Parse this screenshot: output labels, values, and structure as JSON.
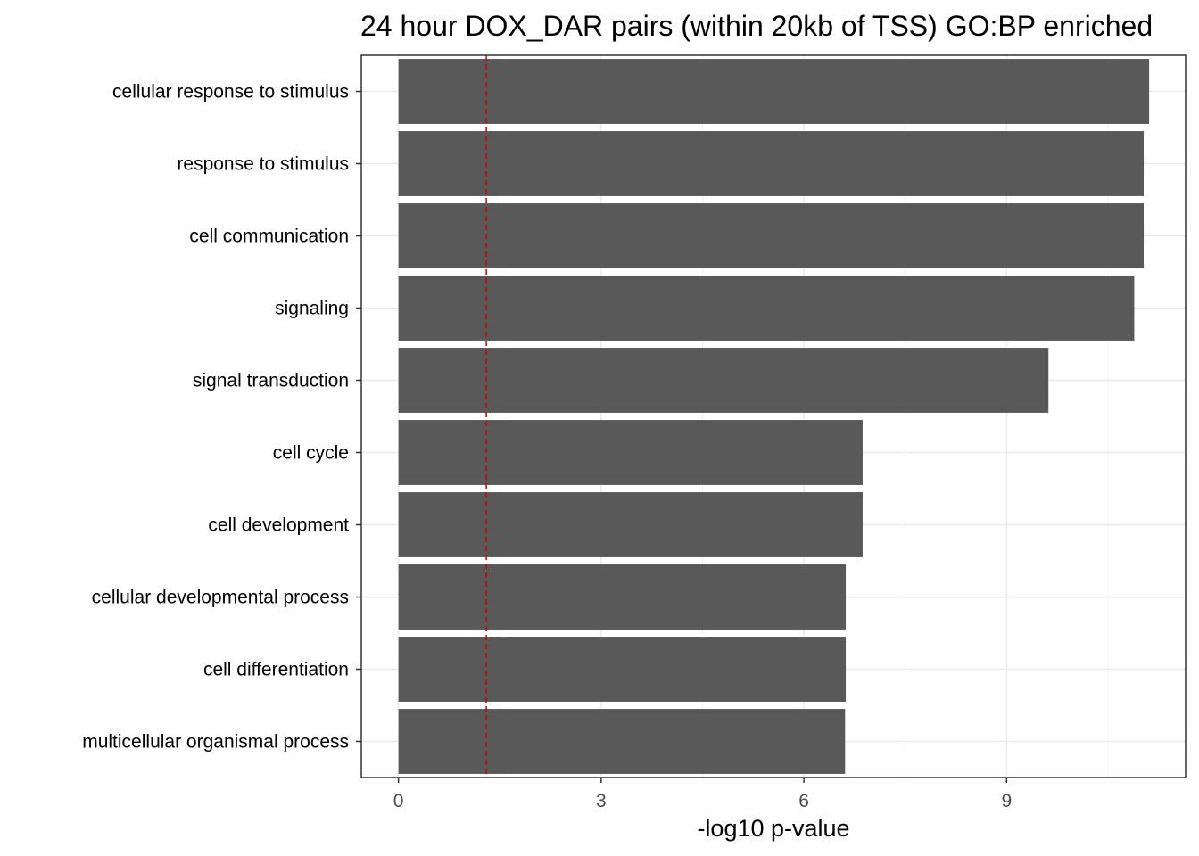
{
  "chart_data": {
    "type": "bar",
    "orientation": "horizontal",
    "title": "24 hour DOX_DAR pairs (within 20kb of TSS) GO:BP enriched",
    "xlabel": "-log10 p-value",
    "ylabel": "",
    "categories": [
      "cellular response to stimulus",
      "response to stimulus",
      "cell communication",
      "signaling",
      "signal transduction",
      "cell cycle",
      "cell development",
      "cellular developmental process",
      "cell differentiation",
      "multicellular organismal process"
    ],
    "values": [
      11.11,
      11.03,
      11.03,
      10.89,
      9.62,
      6.87,
      6.87,
      6.62,
      6.62,
      6.61
    ],
    "xticks": [
      "0",
      "3",
      "6",
      "9"
    ],
    "xlim": [
      -0.55,
      11.65
    ],
    "reference_line": {
      "x": 1.3,
      "style": "dashed",
      "color": "#cc0000"
    },
    "bar_color": "#595959",
    "grid": true,
    "legend": "none"
  }
}
